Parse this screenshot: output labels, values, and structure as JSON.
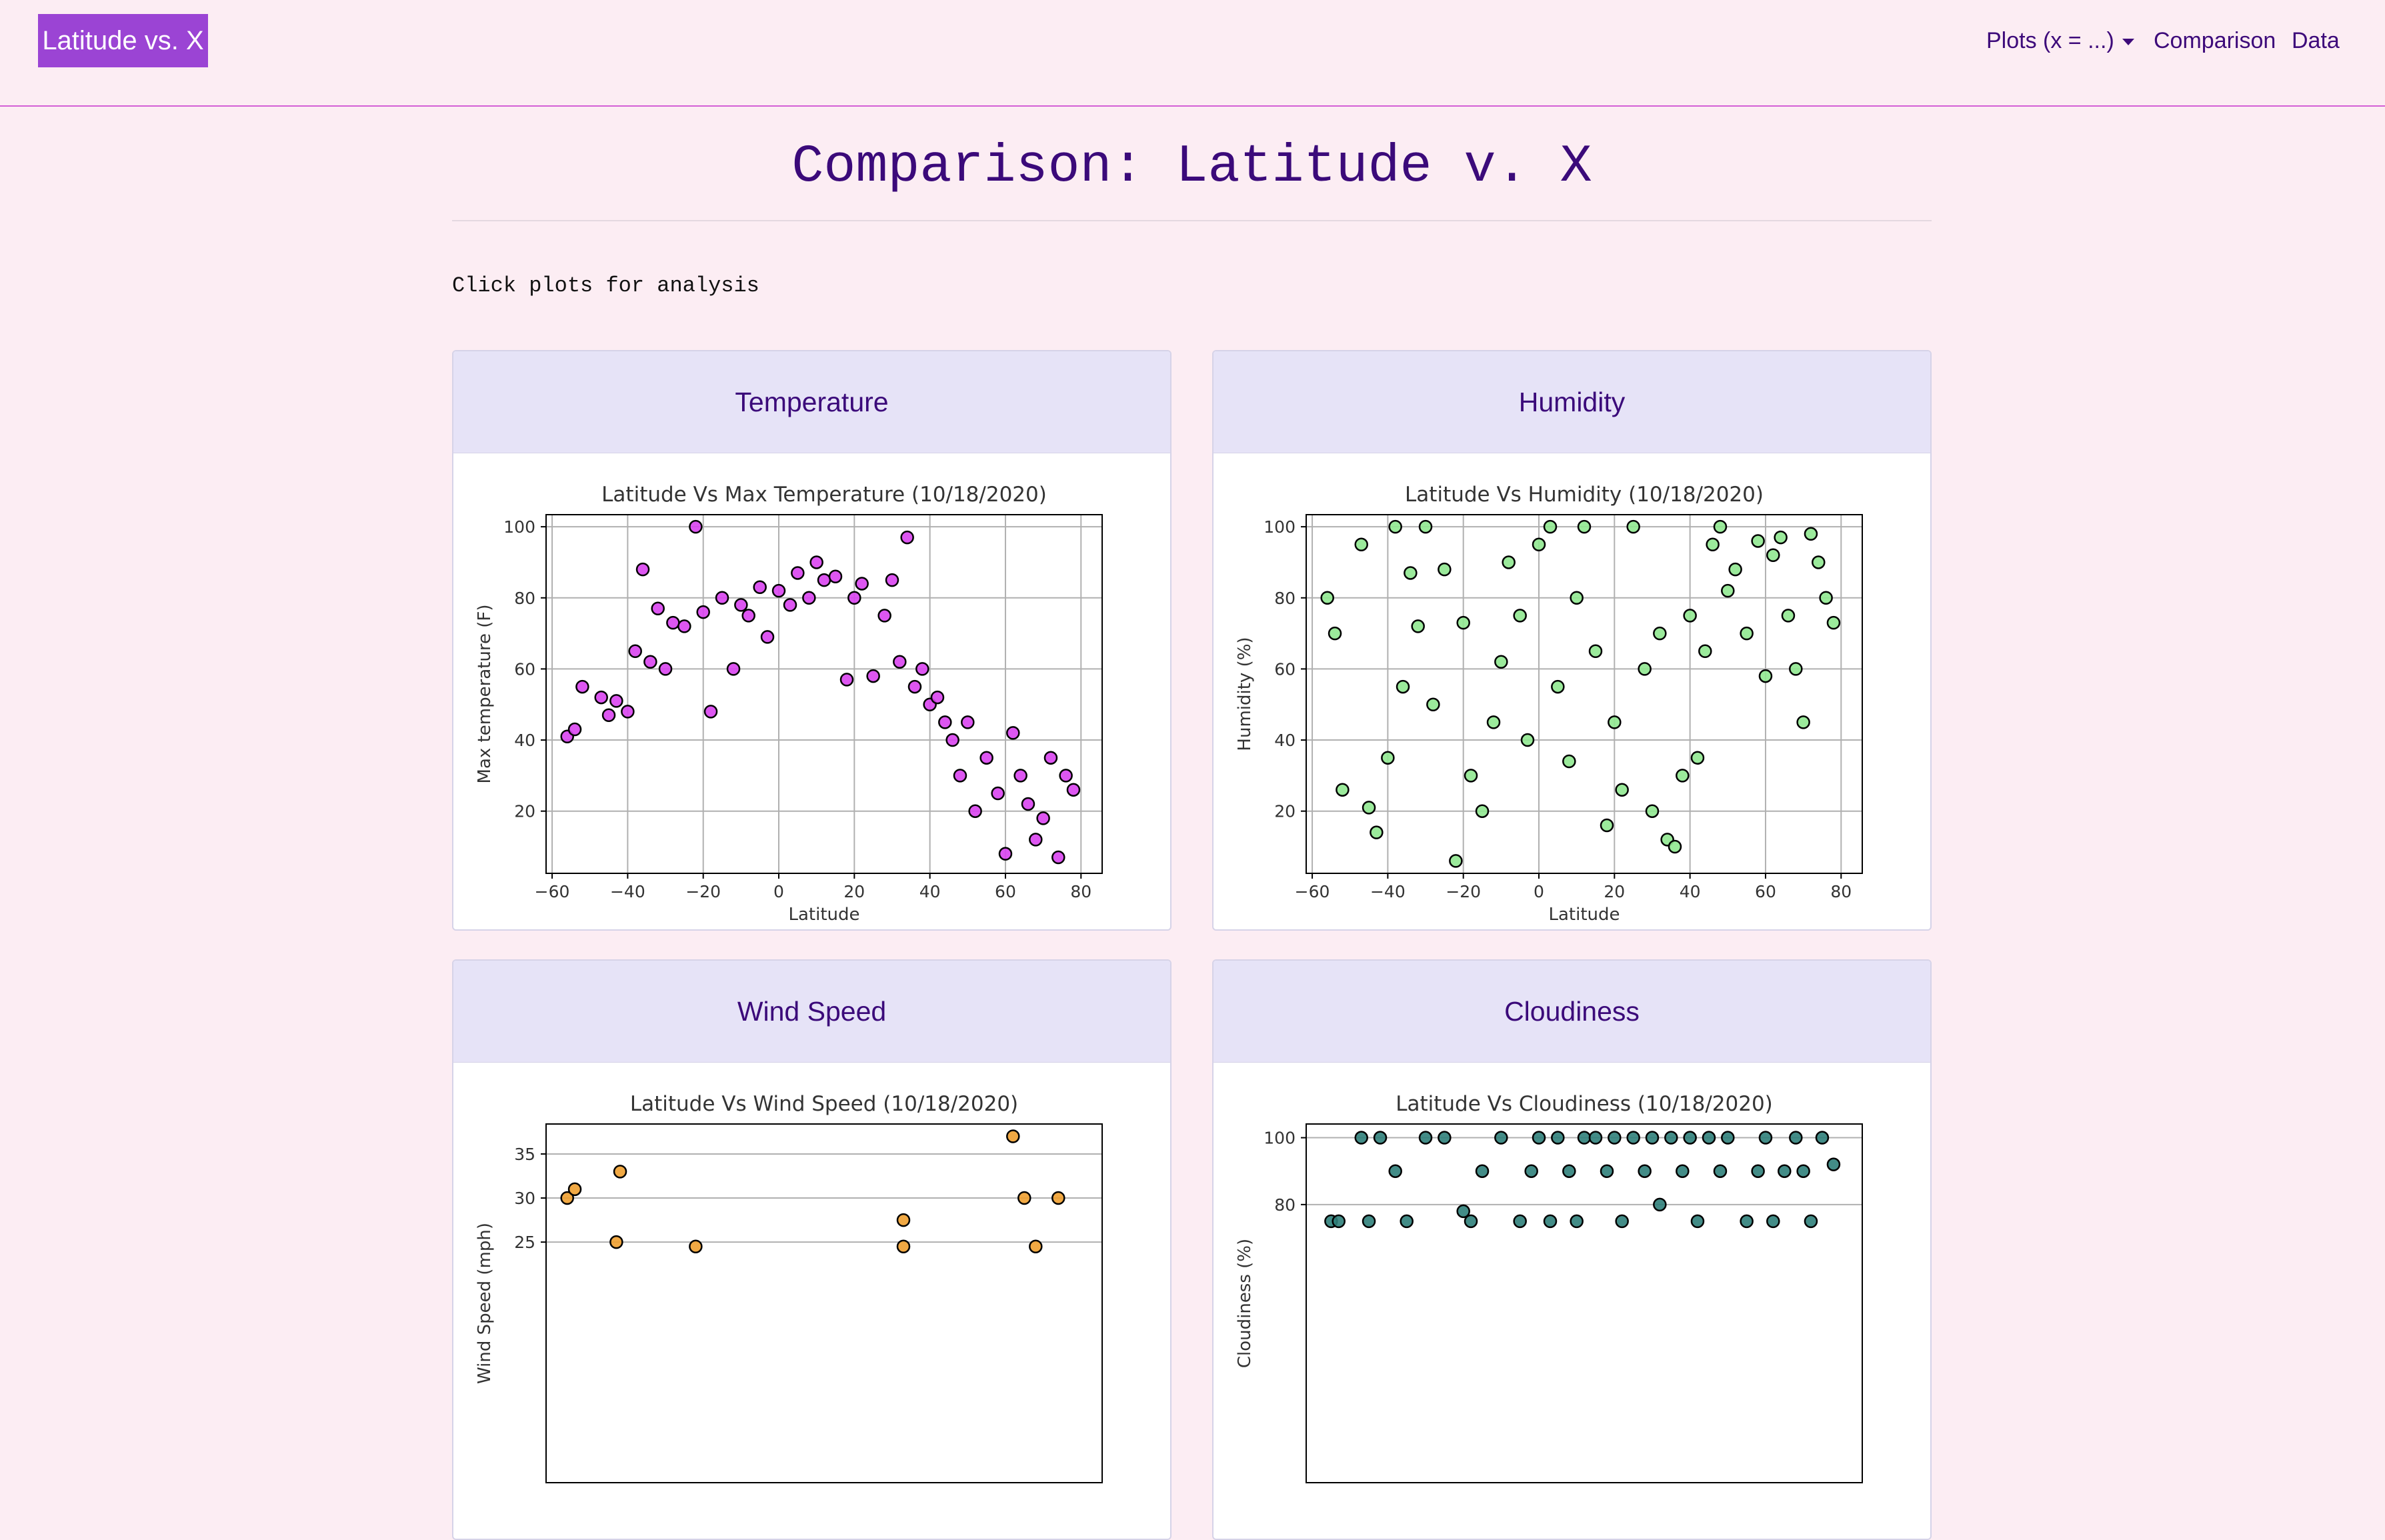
{
  "navbar": {
    "brand": "Latitude vs. X",
    "links": [
      "Plots (x = ...)",
      "Comparison",
      "Data"
    ]
  },
  "heading": "Comparison: Latitude v. X",
  "instruction": "Click plots for analysis",
  "cards": [
    {
      "title": "Temperature",
      "chart_data": {
        "type": "scatter",
        "title": "Latitude Vs Max Temperature (10/18/2020)",
        "xlabel": "Latitude",
        "ylabel": "Max temperature (F)",
        "color": "#d944ef",
        "grid": true,
        "xlim": [
          -61.6,
          85.6
        ],
        "ylim": [
          2.5,
          103.4
        ],
        "xticks": [
          {
            "value": -60,
            "label": "−60"
          },
          {
            "value": -40,
            "label": "−40"
          },
          {
            "value": -20,
            "label": "−20"
          },
          0,
          20,
          40,
          60,
          80
        ],
        "yticks": [
          20,
          40,
          60,
          80,
          100
        ],
        "x": [
          -56,
          -54,
          -52,
          -47,
          -45,
          -43,
          -40,
          -38,
          -36,
          -34,
          -32,
          -30,
          -28,
          -25,
          -22,
          -20,
          -18,
          -15,
          -12,
          -10,
          -8,
          -5,
          -3,
          0,
          3,
          5,
          8,
          10,
          12,
          15,
          18,
          20,
          22,
          25,
          28,
          30,
          32,
          34,
          36,
          38,
          40,
          42,
          44,
          46,
          48,
          50,
          52,
          55,
          58,
          60,
          62,
          64,
          66,
          68,
          70,
          72,
          74,
          76,
          78
        ],
        "y": [
          41,
          43,
          55,
          52,
          47,
          51,
          48,
          65,
          88,
          62,
          77,
          60,
          73,
          72,
          100,
          76,
          48,
          80,
          60,
          78,
          75,
          83,
          69,
          82,
          78,
          87,
          80,
          90,
          85,
          86,
          57,
          80,
          84,
          58,
          75,
          85,
          62,
          97,
          55,
          60,
          50,
          52,
          45,
          40,
          30,
          45,
          20,
          35,
          25,
          8,
          42,
          30,
          22,
          12,
          18,
          35,
          7,
          30,
          26
        ]
      }
    },
    {
      "title": "Humidity",
      "chart_data": {
        "type": "scatter",
        "title": "Latitude Vs Humidity (10/18/2020)",
        "xlabel": "Latitude",
        "ylabel": "Humidity (%)",
        "color": "#90e890",
        "grid": true,
        "xlim": [
          -61.6,
          85.6
        ],
        "ylim": [
          2.5,
          103.4
        ],
        "xticks": [
          {
            "value": -60,
            "label": "−60"
          },
          {
            "value": -40,
            "label": "−40"
          },
          {
            "value": -20,
            "label": "−20"
          },
          0,
          20,
          40,
          60,
          80
        ],
        "yticks": [
          20,
          40,
          60,
          80,
          100
        ],
        "x": [
          -56,
          -54,
          -52,
          -47,
          -45,
          -43,
          -40,
          -38,
          -36,
          -34,
          -32,
          -30,
          -28,
          -25,
          -22,
          -20,
          -18,
          -15,
          -12,
          -10,
          -8,
          -5,
          -3,
          0,
          3,
          5,
          8,
          10,
          12,
          15,
          18,
          20,
          22,
          25,
          28,
          30,
          32,
          34,
          36,
          38,
          40,
          42,
          44,
          46,
          48,
          50,
          52,
          55,
          58,
          60,
          62,
          64,
          66,
          68,
          70,
          72,
          74,
          76,
          78
        ],
        "y": [
          80,
          70,
          26,
          95,
          21,
          14,
          35,
          100,
          55,
          87,
          72,
          100,
          50,
          88,
          6,
          73,
          30,
          20,
          45,
          62,
          90,
          75,
          40,
          95,
          100,
          55,
          34,
          80,
          100,
          65,
          16,
          45,
          26,
          100,
          60,
          20,
          70,
          12,
          10,
          30,
          75,
          35,
          65,
          95,
          100,
          82,
          88,
          70,
          96,
          58,
          92,
          97,
          75,
          60,
          45,
          98,
          90,
          80,
          73
        ]
      }
    },
    {
      "title": "Wind Speed",
      "chart_data": {
        "type": "scatter",
        "title": "Latitude Vs Wind Speed (10/18/2020)",
        "ylabel": "Wind Speed (mph)",
        "color": "#f0a030",
        "grid": true,
        "xlim": [
          -61.6,
          85.6
        ],
        "ylim": [
          -2.3,
          38.4
        ],
        "yticks": [
          25,
          30,
          35
        ],
        "x": [
          -56,
          -54,
          -42,
          -43,
          -22,
          33,
          33,
          62,
          65,
          68,
          74
        ],
        "y": [
          30,
          31,
          33,
          25,
          24.5,
          27.5,
          24.5,
          37,
          30,
          24.5,
          30
        ]
      }
    },
    {
      "title": "Cloudiness",
      "chart_data": {
        "type": "scatter",
        "title": "Latitude Vs Cloudiness (10/18/2020)",
        "ylabel": "Cloudiness (%)",
        "color": "#2f7f7a",
        "grid": true,
        "xlim": [
          -61.6,
          85.6
        ],
        "ylim": [
          -3.2,
          104.1
        ],
        "yticks": [
          80,
          100
        ],
        "x": [
          -55,
          -53,
          -47,
          -45,
          -42,
          -38,
          -35,
          -30,
          -25,
          -20,
          -18,
          -15,
          -10,
          -5,
          -2,
          0,
          3,
          5,
          8,
          10,
          12,
          15,
          18,
          20,
          22,
          25,
          28,
          30,
          32,
          35,
          38,
          40,
          42,
          45,
          48,
          50,
          55,
          58,
          60,
          62,
          65,
          68,
          70,
          72,
          75,
          78
        ],
        "y": [
          75,
          75,
          100,
          75,
          100,
          90,
          75,
          100,
          100,
          78,
          75,
          90,
          100,
          75,
          90,
          100,
          75,
          100,
          90,
          75,
          100,
          100,
          90,
          100,
          75,
          100,
          90,
          100,
          80,
          100,
          90,
          100,
          75,
          100,
          90,
          100,
          75,
          90,
          100,
          75,
          90,
          100,
          90,
          75,
          100,
          92
        ]
      }
    }
  ]
}
